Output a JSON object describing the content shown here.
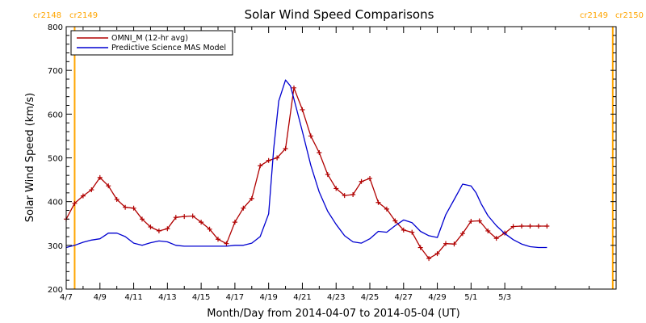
{
  "chart_data": {
    "type": "line",
    "title": "Solar Wind Speed Comparisons",
    "xlabel": "Month/Day from 2014-04-07 to 2014-05-04 (UT)",
    "ylabel": "Solar Wind Speed (km/s)",
    "xlim_days": [
      0,
      32.6
    ],
    "ylim": [
      200,
      800
    ],
    "y_ticks": [
      200,
      300,
      400,
      500,
      600,
      700,
      800
    ],
    "x_tick_labels": [
      "4/7",
      "4/9",
      "4/11",
      "4/13",
      "4/15",
      "4/17",
      "4/19",
      "4/21",
      "4/23",
      "4/25",
      "4/27",
      "4/29",
      "5/1",
      "5/3"
    ],
    "x_tick_days": [
      0,
      2,
      4,
      6,
      8,
      10,
      12,
      14,
      16,
      18,
      20,
      22,
      24,
      26
    ],
    "carrington_markers": [
      {
        "day": 0.5,
        "labels": [
          "cr2148",
          "cr2149"
        ],
        "label_anchor": "left"
      },
      {
        "day": 32.4,
        "labels": [
          "cr2149",
          "cr2150"
        ],
        "label_anchor": "right"
      }
    ],
    "carrington_color": "#ffa500",
    "legend_position": "top-left",
    "series": [
      {
        "name": "OMNI_M (12-hr avg)",
        "color": "#b00000",
        "markers": true,
        "x": [
          0,
          0.5,
          1,
          1.5,
          2,
          2.5,
          3,
          3.5,
          4,
          4.5,
          5,
          5.5,
          6,
          6.5,
          7,
          7.5,
          8,
          8.5,
          9,
          9.5,
          10,
          10.5,
          11,
          11.5,
          12,
          12.5,
          13,
          13.5,
          14,
          14.5,
          15,
          15.5,
          16,
          16.5,
          17,
          17.5,
          18,
          18.5,
          19,
          19.5,
          20,
          20.5,
          21,
          21.5,
          22,
          22.5,
          23,
          23.5,
          24,
          24.5,
          25,
          25.5,
          26,
          26.5,
          27,
          27.5,
          28,
          28.5
        ],
        "values": [
          360,
          396,
          413,
          427,
          455,
          436,
          405,
          387,
          385,
          360,
          342,
          333,
          338,
          364,
          366,
          367,
          353,
          337,
          314,
          304,
          353,
          385,
          407,
          482,
          494,
          500,
          521,
          660,
          610,
          550,
          512,
          462,
          430,
          414,
          416,
          446,
          453,
          398,
          383,
          356,
          335,
          330,
          295,
          270,
          281,
          304,
          303,
          327,
          355,
          356,
          333,
          316,
          328,
          343,
          344,
          344,
          344,
          344
        ]
      },
      {
        "name": "Predictive Science MAS Model",
        "color": "#0000d0",
        "markers": false,
        "x": [
          0,
          0.5,
          1,
          1.5,
          2,
          2.5,
          3,
          3.5,
          4,
          4.5,
          5,
          5.5,
          6,
          6.5,
          7,
          7.5,
          8,
          8.5,
          9,
          9.5,
          10,
          10.5,
          11,
          11.5,
          12,
          12.3,
          12.6,
          13,
          13.3,
          13.6,
          14,
          14.5,
          15,
          15.5,
          16,
          16.5,
          17,
          17.5,
          18,
          18.5,
          19,
          19.5,
          20,
          20.5,
          21,
          21.5,
          22,
          22.5,
          23,
          23.5,
          24,
          24.3,
          24.6,
          25,
          25.5,
          26,
          26.5,
          27,
          27.5,
          28,
          28.5
        ],
        "values": [
          295,
          300,
          307,
          312,
          315,
          328,
          328,
          320,
          305,
          300,
          306,
          310,
          308,
          300,
          298,
          298,
          298,
          298,
          298,
          298,
          300,
          300,
          305,
          320,
          372,
          520,
          630,
          678,
          664,
          620,
          560,
          483,
          422,
          378,
          348,
          322,
          308,
          305,
          315,
          332,
          330,
          345,
          358,
          352,
          332,
          322,
          318,
          370,
          405,
          440,
          436,
          420,
          395,
          368,
          345,
          327,
          313,
          303,
          297,
          295,
          295
        ]
      }
    ]
  }
}
